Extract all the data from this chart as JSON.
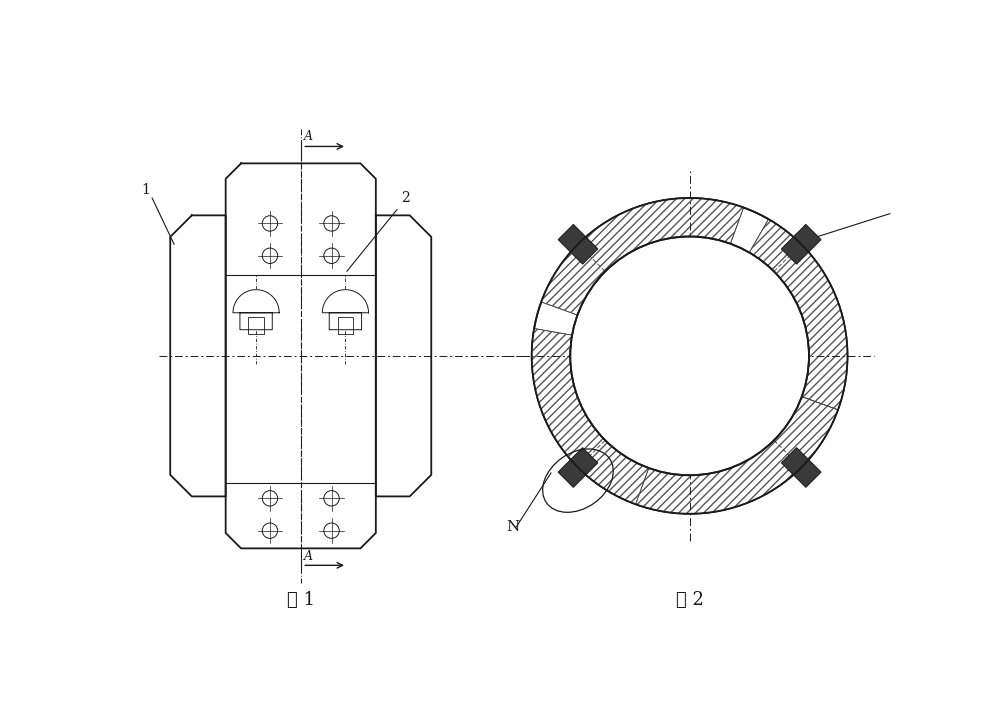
{
  "bg_color": "#ffffff",
  "line_color": "#1a1a1a",
  "fig1_label": "图 1",
  "fig2_label": "图 2",
  "label_1": "1",
  "label_2": "2",
  "label_N": "N",
  "label_A": "A"
}
